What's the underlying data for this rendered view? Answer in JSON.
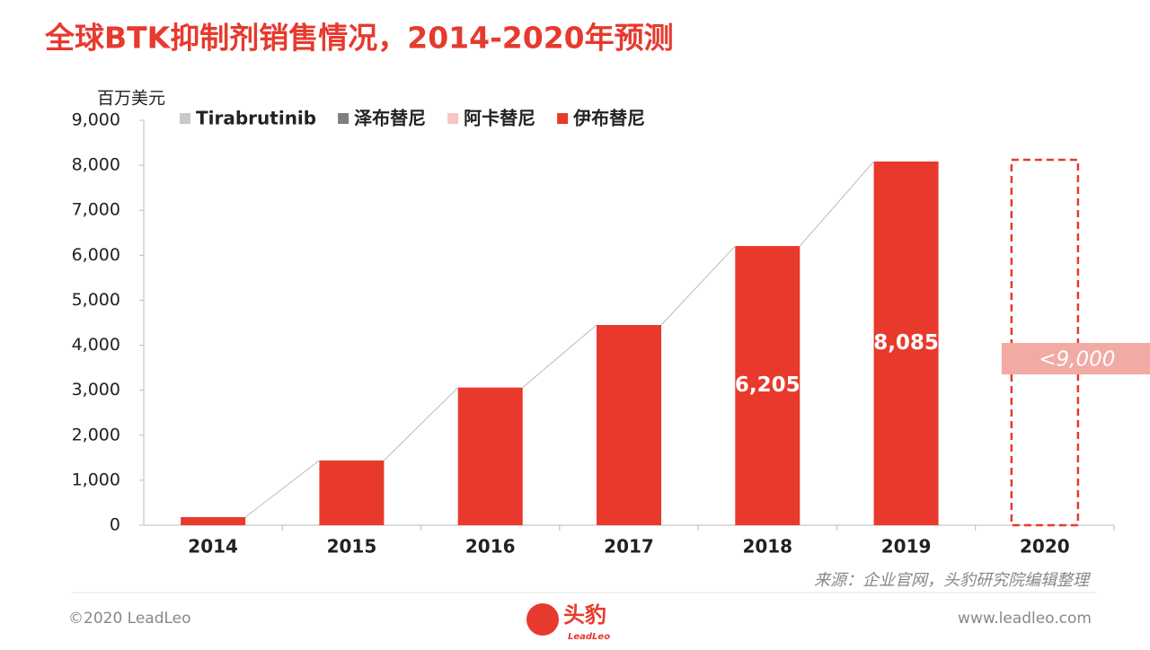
{
  "chart_data": {
    "type": "bar",
    "stacked": true,
    "title": "全球BTK抑制剂销售情况，2014-2020年预测",
    "y_label": "百万美元",
    "categories": [
      "2014",
      "2015",
      "2016",
      "2017",
      "2018",
      "2019",
      "2020"
    ],
    "series": [
      {
        "name": "Tirabrutinib",
        "color": "#c9c9c9",
        "values": [
          0,
          0,
          0,
          0,
          0,
          0,
          null
        ]
      },
      {
        "name": "泽布替尼",
        "color": "#7f7f7f",
        "values": [
          0,
          0,
          0,
          0,
          0,
          0,
          null
        ]
      },
      {
        "name": "阿卡替尼",
        "color": "#f6c6c2",
        "values": [
          0,
          0,
          0,
          0,
          0,
          0,
          null
        ]
      },
      {
        "name": "伊布替尼",
        "color": "#e8392c",
        "values": [
          180,
          1440,
          3060,
          4450,
          6205,
          8085,
          null
        ],
        "value_labels": [
          null,
          null,
          null,
          null,
          "6,205",
          "8,085",
          null
        ]
      }
    ],
    "annotation": "<9,000",
    "ylim": [
      0,
      9000
    ],
    "yticks": [
      0,
      {
        "value": 1000,
        "label": "1,000"
      },
      {
        "value": 2000,
        "label": "2,000"
      },
      {
        "value": 3000,
        "label": "3,000"
      },
      {
        "value": 4000,
        "label": "4,000"
      },
      {
        "value": 5000,
        "label": "5,000"
      },
      {
        "value": 6000,
        "label": "6,000"
      },
      {
        "value": 7000,
        "label": "7,000"
      },
      {
        "value": 8000,
        "label": "8,000"
      },
      {
        "value": 9000,
        "label": "9,000"
      }
    ],
    "grid": false,
    "source": "来源：企业官网，头豹研究院编辑整理"
  },
  "footer": {
    "copyright": "©2020 LeadLeo",
    "logo": "头豹",
    "logo_sub": "LeadLeo",
    "website": "www.leadleo.com"
  }
}
